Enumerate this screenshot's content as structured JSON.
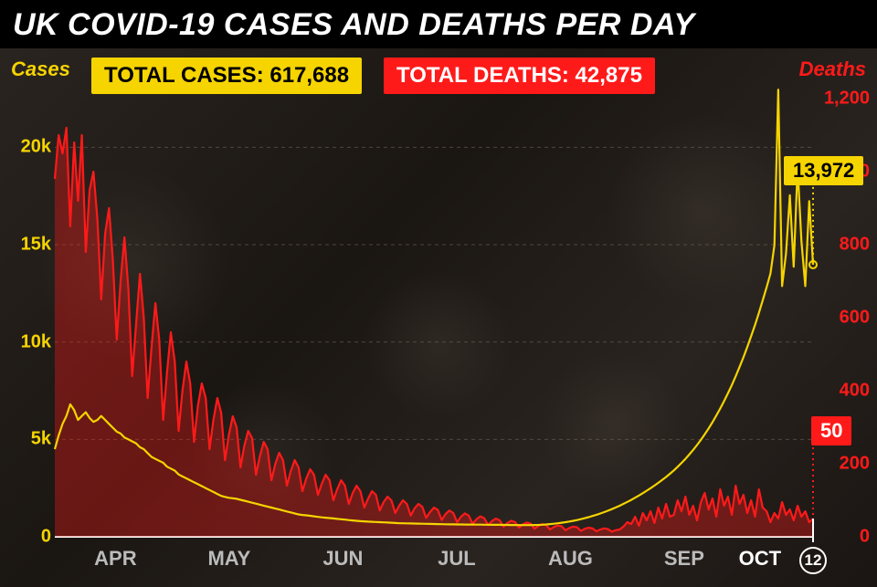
{
  "title": "UK COVID-19 CASES AND DEATHS PER DAY",
  "badges": {
    "total_cases_label": "TOTAL CASES: 617,688",
    "total_deaths_label": "TOTAL DEATHS: 42,875"
  },
  "axis_labels": {
    "left": "Cases",
    "right": "Deaths"
  },
  "colors": {
    "cases_line": "#f5d400",
    "deaths_line": "#ff1a1a",
    "deaths_fill": "rgba(255,26,26,0.35)",
    "grid": "#7a6a5a",
    "xtick": "#bbbbbb",
    "xtick_current": "#ffffff",
    "background_dark": "#1a1612",
    "title_bg": "#000000",
    "title_text": "#ffffff"
  },
  "typography": {
    "title_fontsize": 34,
    "axis_label_fontsize": 22,
    "badge_fontsize": 24,
    "tick_fontsize": 20,
    "xtick_fontsize": 22,
    "callout_fontsize": 22
  },
  "chart": {
    "type": "dual-axis-line",
    "left_axis": {
      "min": 0,
      "max": 22500,
      "ticks": [
        0,
        5000,
        10000,
        15000,
        20000
      ],
      "tick_labels": [
        "0",
        "5k",
        "10k",
        "15k",
        "20k"
      ]
    },
    "right_axis": {
      "min": 0,
      "max": 1200,
      "ticks": [
        0,
        200,
        400,
        600,
        800,
        1000,
        1200
      ],
      "tick_labels": [
        "0",
        "200",
        "400",
        "600",
        "800",
        "1,000",
        "1,200"
      ]
    },
    "x_axis": {
      "months": [
        "APR",
        "MAY",
        "JUN",
        "JUL",
        "AUG",
        "SEP",
        "OCT"
      ],
      "month_positions_pct": [
        8,
        23,
        38,
        53,
        68,
        83,
        93
      ],
      "current_day_label": "12",
      "current_day_position_pct": 100
    },
    "callouts": {
      "cases": {
        "value": "13,972"
      },
      "deaths": {
        "value": "50"
      }
    },
    "cases_series": [
      4500,
      5200,
      5800,
      6200,
      6800,
      6500,
      6000,
      6200,
      6400,
      6100,
      5900,
      6000,
      6200,
      6000,
      5800,
      5600,
      5400,
      5300,
      5100,
      5000,
      4900,
      4800,
      4600,
      4500,
      4300,
      4100,
      4000,
      3900,
      3800,
      3600,
      3500,
      3400,
      3200,
      3100,
      3000,
      2900,
      2800,
      2700,
      2600,
      2500,
      2400,
      2300,
      2200,
      2100,
      2050,
      2000,
      1980,
      1950,
      1900,
      1850,
      1800,
      1750,
      1700,
      1650,
      1600,
      1550,
      1500,
      1450,
      1400,
      1350,
      1300,
      1250,
      1200,
      1150,
      1120,
      1100,
      1080,
      1050,
      1020,
      1000,
      980,
      960,
      940,
      920,
      900,
      880,
      860,
      840,
      820,
      800,
      790,
      780,
      770,
      760,
      750,
      740,
      730,
      720,
      710,
      700,
      695,
      690,
      685,
      680,
      675,
      670,
      665,
      660,
      655,
      650,
      645,
      640,
      638,
      636,
      634,
      632,
      630,
      628,
      626,
      624,
      622,
      620,
      618,
      616,
      614,
      612,
      610,
      608,
      606,
      604,
      602,
      600,
      598,
      600,
      605,
      610,
      620,
      635,
      650,
      670,
      695,
      720,
      750,
      785,
      820,
      860,
      905,
      955,
      1010,
      1070,
      1130,
      1195,
      1265,
      1340,
      1420,
      1505,
      1595,
      1690,
      1790,
      1895,
      2005,
      2120,
      2240,
      2365,
      2495,
      2630,
      2770,
      2915,
      3070,
      3235,
      3410,
      3595,
      3790,
      4000,
      4225,
      4460,
      4710,
      4975,
      5260,
      5565,
      5885,
      6225,
      6585,
      6965,
      7365,
      7790,
      8240,
      8715,
      9215,
      9745,
      10300,
      10880,
      11495,
      12140,
      12815,
      13525,
      14970,
      22961,
      12872,
      14542,
      17540,
      13864,
      18980,
      15166,
      12872,
      17234,
      13972
    ],
    "deaths_series": [
      980,
      1100,
      1050,
      1120,
      850,
      1080,
      920,
      1100,
      780,
      950,
      1000,
      870,
      650,
      830,
      900,
      760,
      540,
      700,
      820,
      680,
      440,
      580,
      720,
      600,
      380,
      520,
      640,
      540,
      320,
      450,
      560,
      480,
      290,
      400,
      480,
      420,
      260,
      360,
      420,
      380,
      240,
      320,
      380,
      340,
      210,
      280,
      330,
      300,
      190,
      250,
      290,
      270,
      170,
      220,
      260,
      240,
      155,
      200,
      230,
      210,
      140,
      180,
      210,
      190,
      125,
      160,
      185,
      170,
      115,
      145,
      170,
      155,
      100,
      130,
      155,
      140,
      90,
      120,
      140,
      125,
      80,
      105,
      125,
      115,
      72,
      95,
      110,
      100,
      65,
      85,
      100,
      90,
      58,
      78,
      90,
      82,
      52,
      68,
      80,
      74,
      46,
      62,
      72,
      65,
      40,
      55,
      64,
      58,
      36,
      48,
      56,
      51,
      32,
      43,
      50,
      45,
      28,
      38,
      44,
      40,
      25,
      34,
      39,
      36,
      22,
      30,
      35,
      32,
      20,
      27,
      31,
      29,
      18,
      24,
      28,
      26,
      16,
      22,
      25,
      23,
      15,
      20,
      23,
      21,
      14,
      18,
      20,
      28,
      40,
      35,
      55,
      30,
      65,
      45,
      70,
      38,
      80,
      50,
      90,
      55,
      60,
      100,
      70,
      110,
      60,
      85,
      45,
      95,
      120,
      75,
      105,
      55,
      130,
      85,
      110,
      60,
      140,
      90,
      115,
      65,
      100,
      55,
      130,
      80,
      70,
      40,
      65,
      50,
      95,
      60,
      75,
      45,
      85,
      55,
      70,
      40,
      50
    ],
    "line_width": 2.2
  }
}
